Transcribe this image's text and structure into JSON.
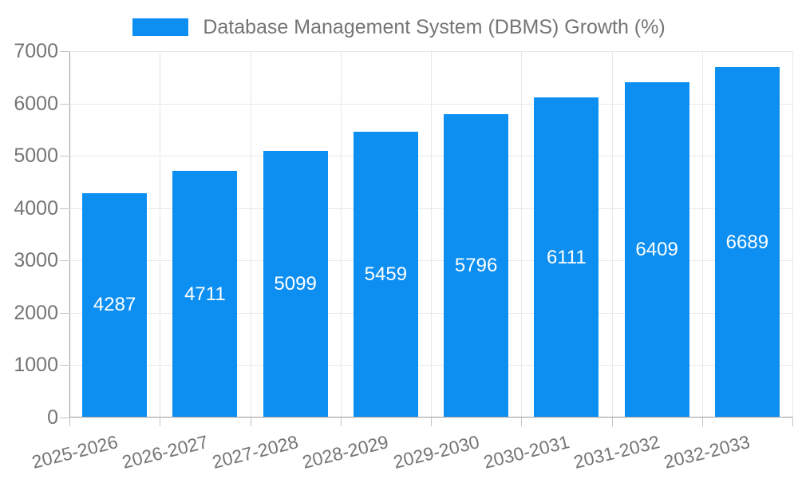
{
  "legend": {
    "label": "Database Management System (DBMS) Growth (%)"
  },
  "colors": {
    "bar": "#0d8ff2",
    "axis_text": "#757575",
    "value_label": "#ffffff",
    "gridline": "#e8e8e8",
    "axis_line": "#9a9a9a"
  },
  "chart_data": {
    "type": "bar",
    "title": "",
    "xlabel": "",
    "ylabel": "",
    "categories": [
      "2025-2026",
      "2026-2027",
      "2027-2028",
      "2028-2029",
      "2029-2030",
      "2030-2031",
      "2031-2032",
      "2032-2033"
    ],
    "series": [
      {
        "name": "Database Management System (DBMS) Growth (%)",
        "values": [
          4287,
          4711,
          5099,
          5459,
          5796,
          6111,
          6409,
          6689
        ]
      }
    ],
    "value_labels_shown": true,
    "ylim": [
      0,
      7000
    ],
    "yticks": [
      0,
      1000,
      2000,
      3000,
      4000,
      5000,
      6000,
      7000
    ],
    "grid": true,
    "legend_position": "top-center",
    "x_tick_rotation_deg": -14,
    "bar_color": "#0d8ff2"
  }
}
